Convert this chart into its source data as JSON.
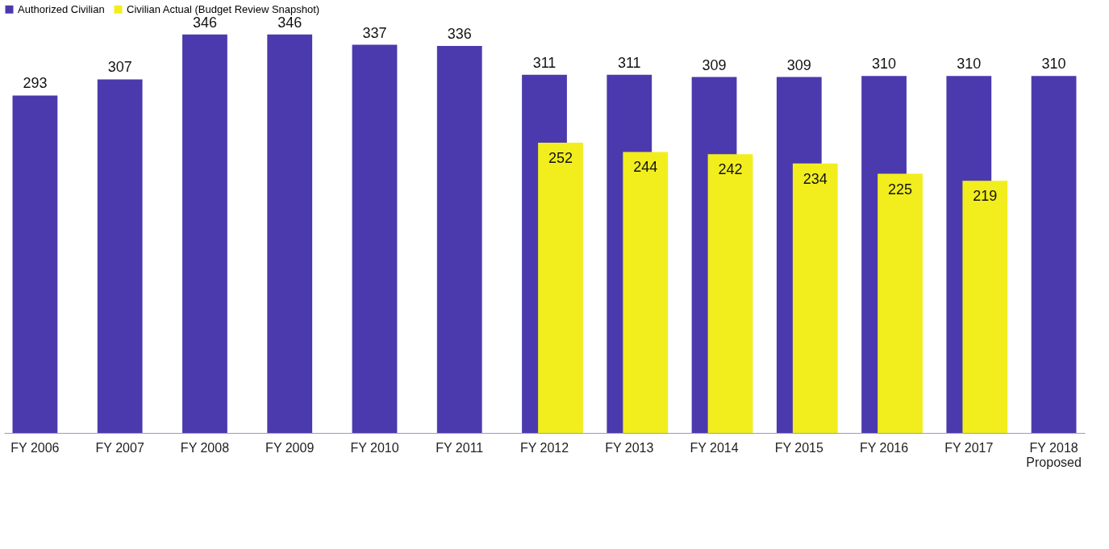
{
  "chart_data": {
    "type": "bar",
    "categories": [
      "FY 2006",
      "FY 2007",
      "FY 2008",
      "FY 2009",
      "FY 2010",
      "FY 2011",
      "FY 2012",
      "FY 2013",
      "FY 2014",
      "FY 2015",
      "FY 2016",
      "FY 2017",
      "FY 2018\nProposed"
    ],
    "series": [
      {
        "name": "Authorized Civilian",
        "color": "#4b3aad",
        "values": [
          293,
          307,
          346,
          346,
          337,
          336,
          311,
          311,
          309,
          309,
          310,
          310,
          310
        ]
      },
      {
        "name": "Civilian Actual (Budget Review Snapshot)",
        "color": "#f2ee1e",
        "values": [
          null,
          null,
          null,
          null,
          null,
          null,
          252,
          244,
          242,
          234,
          225,
          219,
          null
        ]
      }
    ],
    "data_labels": true,
    "tick_labels": "x",
    "legend": "top",
    "grid": false
  }
}
